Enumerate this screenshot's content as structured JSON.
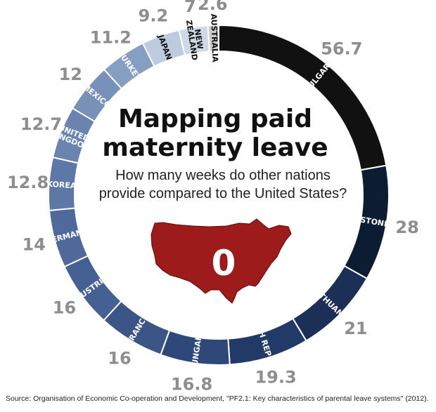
{
  "chart_data": {
    "type": "pie",
    "title_lines": [
      "Mapping paid",
      "maternity leave"
    ],
    "subtitle_lines": [
      "How many weeks do other nations",
      "provide compared to the United States?"
    ],
    "center": {
      "label": "0",
      "country": "United States"
    },
    "slices": [
      {
        "label": "BULGARIA",
        "value": 56.7,
        "value_text": "56.7",
        "color": "#111111",
        "text_color": "#ffffff"
      },
      {
        "label": "ESTONIA",
        "value": 28,
        "value_text": "28",
        "color": "#0c1c33",
        "text_color": "#ffffff"
      },
      {
        "label": "LITHUANIA",
        "value": 21,
        "value_text": "21",
        "color": "#1b2f57",
        "text_color": "#ffffff"
      },
      {
        "label": "CZECH REPUBLIC",
        "value": 19.3,
        "value_text": "19.3",
        "color": "#223a68",
        "text_color": "#ffffff"
      },
      {
        "label": "HUNGARY",
        "value": 16.8,
        "value_text": "16.8",
        "color": "#2e4879",
        "text_color": "#ffffff"
      },
      {
        "label": "FRANCE",
        "value": 16,
        "value_text": "16",
        "color": "#3a5586",
        "text_color": "#ffffff"
      },
      {
        "label": "AUSTRIA",
        "value": 16,
        "value_text": "16",
        "color": "#456092",
        "text_color": "#ffffff"
      },
      {
        "label": "GERMANY",
        "value": 14,
        "value_text": "14",
        "color": "#50699b",
        "text_color": "#ffffff"
      },
      {
        "label": "KOREA",
        "value": 12.8,
        "value_text": "12.8",
        "color": "#5d77a6",
        "text_color": "#ffffff"
      },
      {
        "label": "UNITED KINGDOM",
        "value": 12.7,
        "value_text": "12.7",
        "color": "#6a83af",
        "text_color": "#ffffff"
      },
      {
        "label": "MEXICO",
        "value": 12,
        "value_text": "12",
        "color": "#7891b9",
        "text_color": "#ffffff"
      },
      {
        "label": "TURKEY",
        "value": 11.2,
        "value_text": "11.2",
        "color": "#869ec2",
        "text_color": "#ffffff"
      },
      {
        "label": "JAPAN",
        "value": 9.2,
        "value_text": "9.2",
        "color": "#bccbdd",
        "text_color": "#111111"
      },
      {
        "label": "NEW ZEALAND",
        "value": 7,
        "value_text": "7",
        "color": "#cdd9e6",
        "text_color": "#111111"
      },
      {
        "label": "AUSTRALIA",
        "value": 2.6,
        "value_text": "2.6",
        "color": "#cccccc",
        "text_color": "#111111"
      }
    ],
    "colors": {
      "value_text": "#8e8e8e",
      "us_map": "#9e1b1b",
      "us_map_outline": "#5e0c0c"
    }
  },
  "source": "Source: Organisation of Economic Co-operation and Development, \"PF2.1: Key characteristics of parental leave systems\" (2012)."
}
